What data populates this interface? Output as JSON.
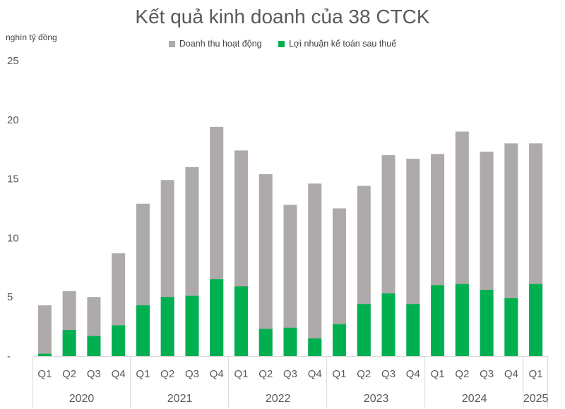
{
  "chart_data": {
    "type": "bar",
    "stacking": "overlap",
    "title": "Kết quả kinh doanh của 38 CTCK",
    "ylabel": "nghìn tỷ đồng",
    "ylim": [
      0,
      25
    ],
    "yticks": [
      {
        "value": 0,
        "label": "-"
      },
      {
        "value": 5,
        "label": "5"
      },
      {
        "value": 10,
        "label": "10"
      },
      {
        "value": 15,
        "label": "15"
      },
      {
        "value": 20,
        "label": "20"
      },
      {
        "value": 25,
        "label": "25"
      }
    ],
    "grid": false,
    "legend": "top-center",
    "categories": [
      "Q1",
      "Q2",
      "Q3",
      "Q4",
      "Q1",
      "Q2",
      "Q3",
      "Q4",
      "Q1",
      "Q2",
      "Q3",
      "Q4",
      "Q1",
      "Q2",
      "Q3",
      "Q4",
      "Q1",
      "Q2",
      "Q3",
      "Q4",
      "Q1"
    ],
    "groups": [
      {
        "label": "2020",
        "count": 4
      },
      {
        "label": "2021",
        "count": 4
      },
      {
        "label": "2022",
        "count": 4
      },
      {
        "label": "2023",
        "count": 4
      },
      {
        "label": "2024",
        "count": 4
      },
      {
        "label": "2025",
        "count": 1
      }
    ],
    "series": [
      {
        "name": "Doanh thu hoạt động",
        "color": "#aeaaaa",
        "values": [
          4.3,
          5.5,
          5.0,
          8.7,
          12.9,
          14.9,
          16.0,
          19.4,
          17.4,
          15.4,
          12.8,
          14.6,
          12.5,
          14.4,
          17.0,
          16.7,
          17.1,
          19.0,
          17.3,
          18.0,
          18.0
        ]
      },
      {
        "name": "Lợi nhuận kế toán sau thuế",
        "color": "#00b050",
        "values": [
          0.2,
          2.2,
          1.7,
          2.6,
          4.3,
          5.0,
          5.1,
          6.5,
          5.9,
          2.3,
          2.4,
          1.5,
          2.7,
          4.4,
          5.3,
          4.4,
          6.0,
          6.1,
          5.6,
          4.9,
          6.1
        ]
      }
    ]
  }
}
